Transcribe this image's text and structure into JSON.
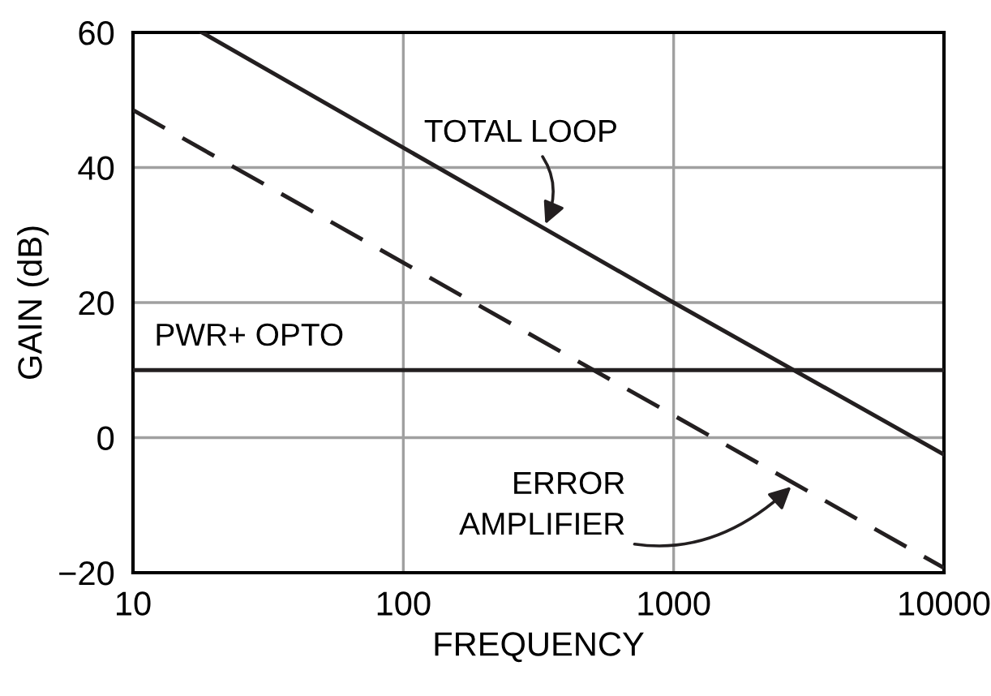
{
  "chart_data": {
    "type": "line",
    "xlabel": "FREQUENCY",
    "ylabel": "GAIN (dB)",
    "log": "x",
    "series": [
      {
        "color": "#231f20",
        "line_style": "solid",
        "x": [
          18,
          1000,
          10000
        ],
        "values": [
          60,
          20,
          -2.5
        ]
      },
      {
        "color": "#231f20",
        "line_style": "dashed",
        "x": [
          10,
          1000,
          10000
        ],
        "values": [
          48.5,
          3.3,
          -19.3
        ]
      },
      {
        "color": "#231f20",
        "line_style": "solid",
        "x": [
          10,
          10000
        ],
        "values": [
          10,
          10
        ]
      }
    ],
    "annotations": [
      {
        "text": "TOTAL LOOP",
        "x": 330,
        "y": 31
      },
      {
        "text": "ERROR\nAMPLIFIER",
        "x": 2800,
        "y": -6.8
      },
      {
        "text": "PWR+ OPTO",
        "x": 12,
        "y": 10
      }
    ],
    "xlim": [
      10,
      10000
    ],
    "ylim": [
      -20,
      60
    ],
    "xticks": [
      10,
      100,
      1000,
      10000
    ],
    "yticks": [
      {
        "value": -20,
        "label": "−20"
      },
      0,
      20,
      40,
      60
    ],
    "grid": true,
    "marker": "none"
  }
}
